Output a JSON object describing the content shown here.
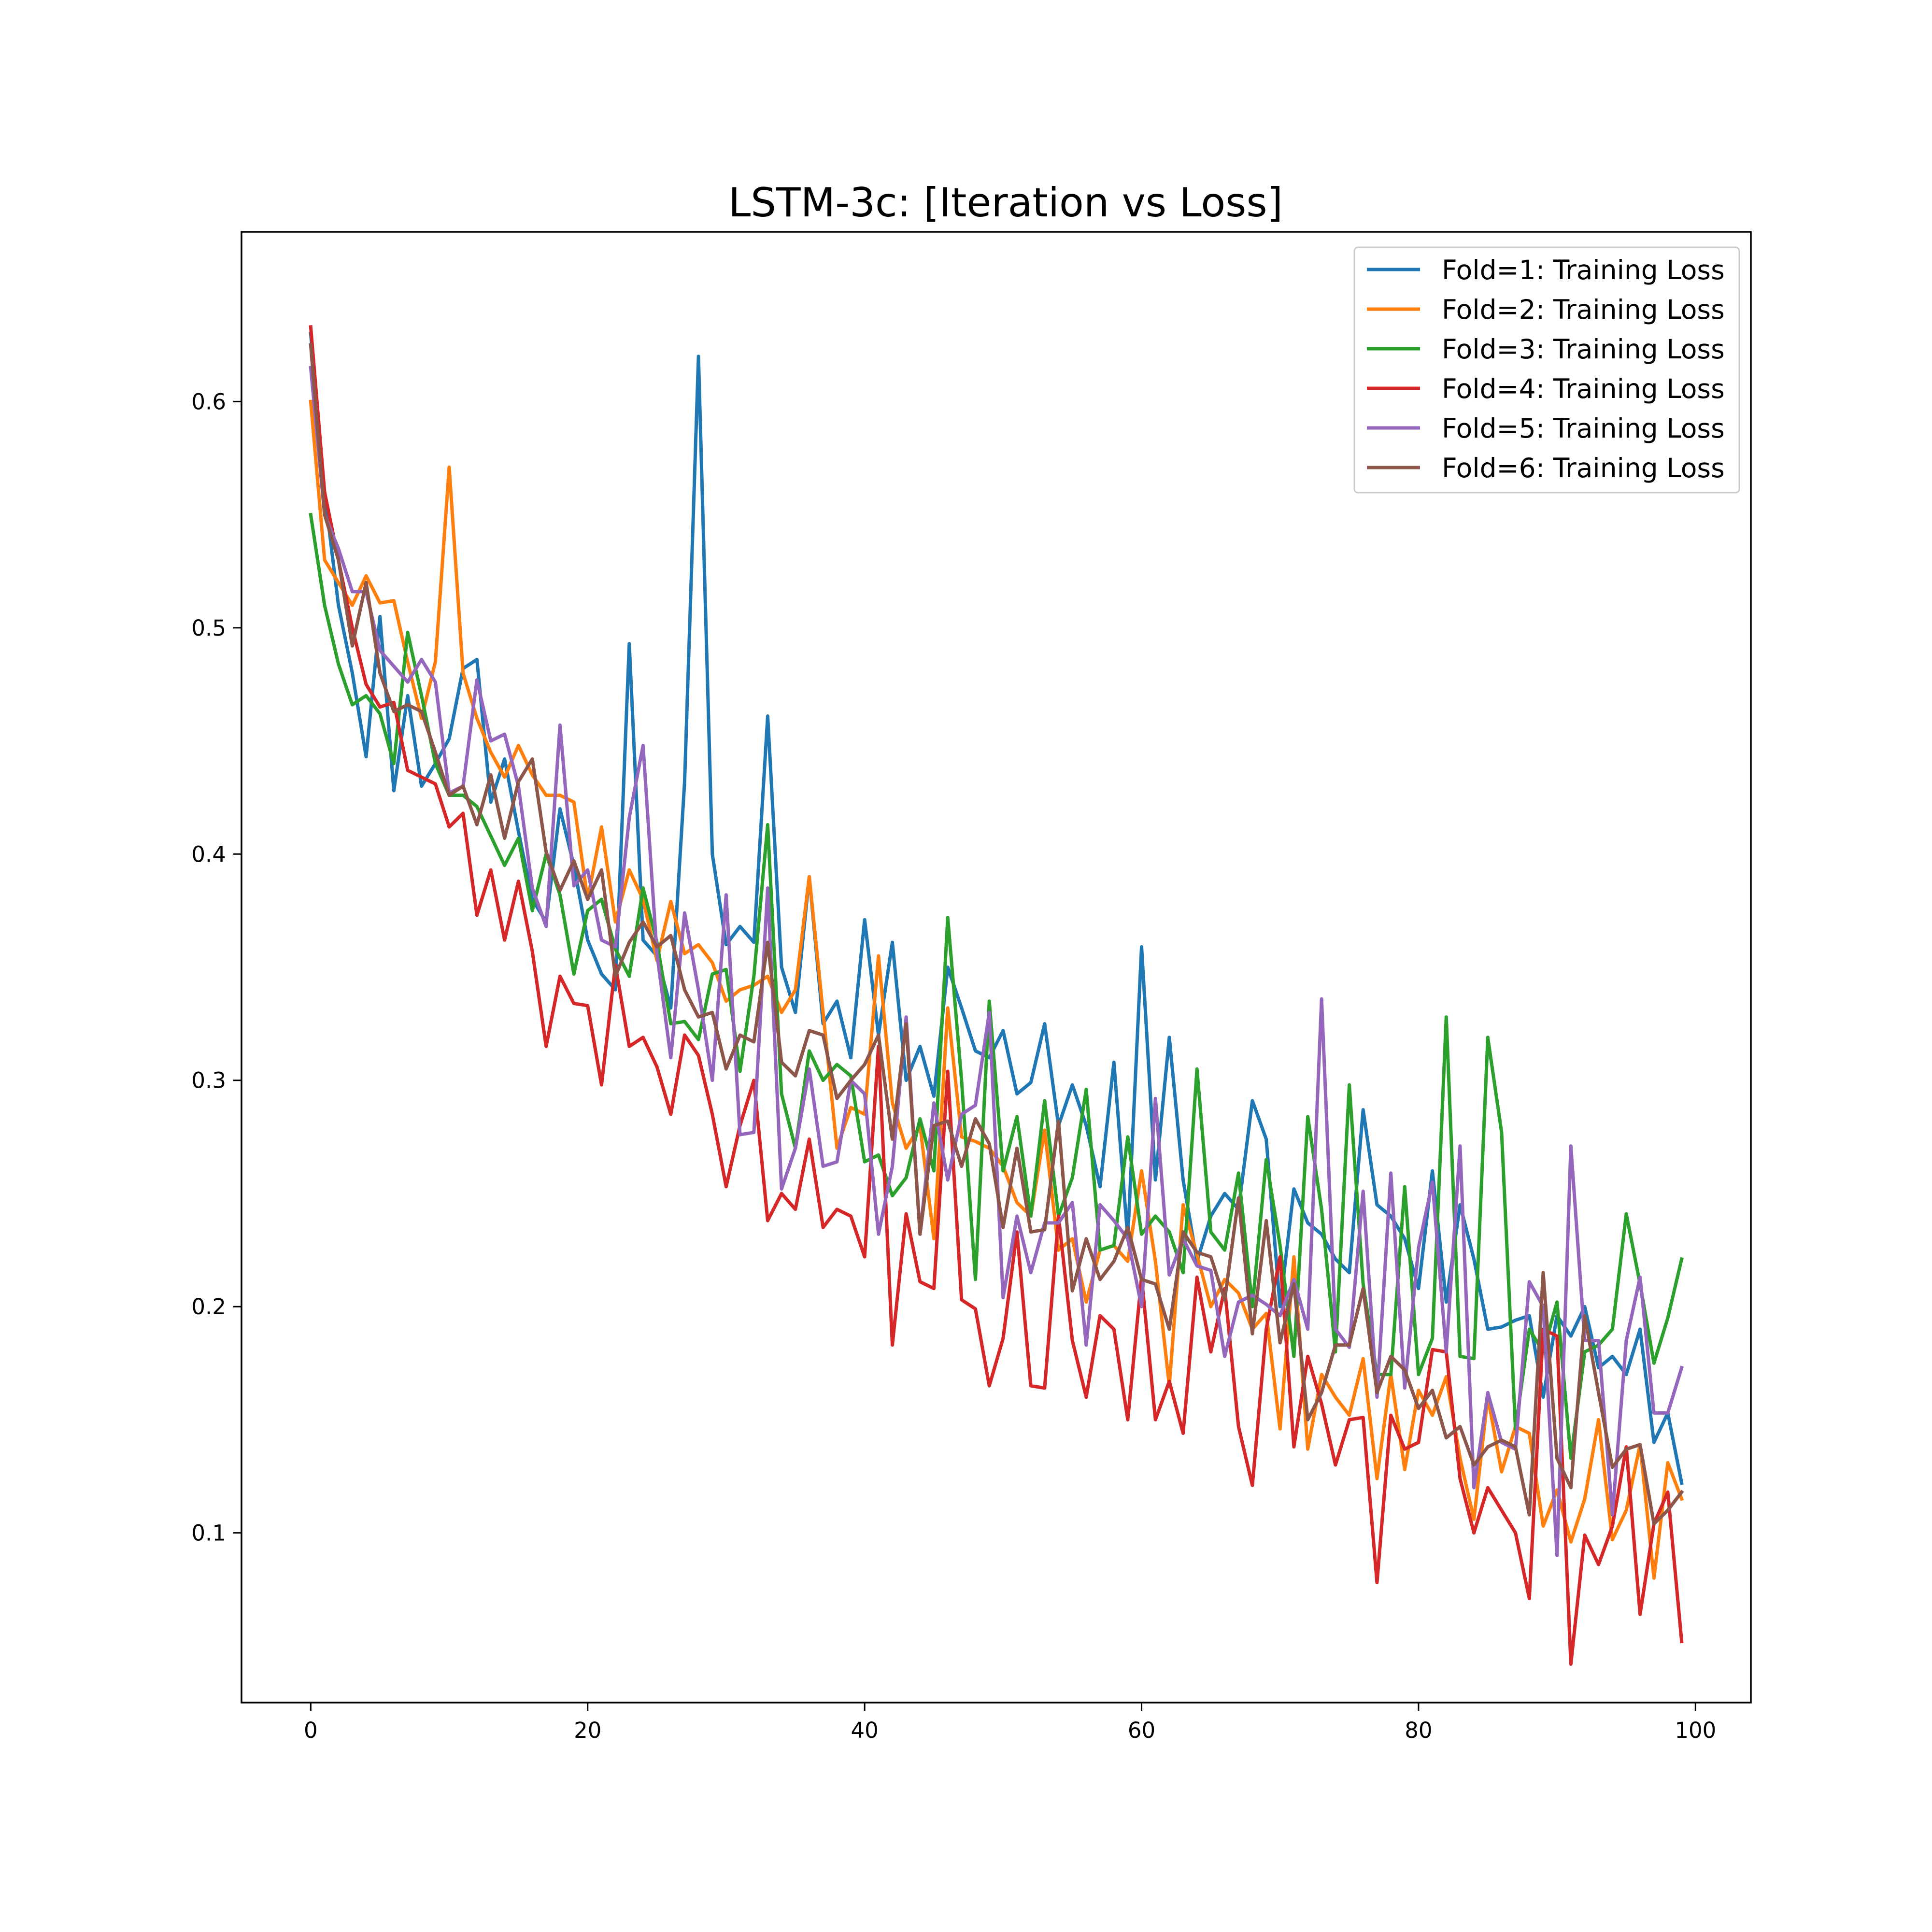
{
  "chart_data": {
    "type": "line",
    "title": "LSTM-3c: [Iteration vs Loss]",
    "xlabel": "",
    "ylabel": "",
    "xlim": [
      -5,
      104
    ],
    "ylim": [
      0.025,
      0.675
    ],
    "xticks": [
      0,
      20,
      40,
      60,
      80,
      100
    ],
    "yticks": [
      0.1,
      0.2,
      0.3,
      0.4,
      0.5,
      0.6
    ],
    "grid": false,
    "legend_position": "top-right",
    "series": [
      {
        "name": "Fold=1: Training Loss",
        "color": "#1f77b4",
        "values": [
          0.63,
          0.56,
          0.51,
          0.48,
          0.443,
          0.505,
          0.428,
          0.47,
          0.43,
          0.44,
          0.451,
          0.482,
          0.486,
          0.423,
          0.442,
          0.41,
          0.38,
          0.37,
          0.42,
          0.395,
          0.362,
          0.347,
          0.34,
          0.493,
          0.362,
          0.355,
          0.332,
          0.432,
          0.62,
          0.4,
          0.36,
          0.368,
          0.361,
          0.461,
          0.35,
          0.33,
          0.39,
          0.325,
          0.335,
          0.31,
          0.371,
          0.32,
          0.361,
          0.3,
          0.315,
          0.293,
          0.35,
          0.332,
          0.313,
          0.31,
          0.322,
          0.294,
          0.299,
          0.325,
          0.28,
          0.298,
          0.28,
          0.253,
          0.308,
          0.23,
          0.359,
          0.256,
          0.319,
          0.256,
          0.22,
          0.24,
          0.25,
          0.243,
          0.291,
          0.274,
          0.2,
          0.252,
          0.237,
          0.232,
          0.221,
          0.215,
          0.287,
          0.245,
          0.24,
          0.23,
          0.208,
          0.26,
          0.202,
          0.245,
          0.221,
          0.19,
          0.191,
          0.194,
          0.196,
          0.16,
          0.196,
          0.187,
          0.2,
          0.173,
          0.178,
          0.17,
          0.19,
          0.14,
          0.153,
          0.122
        ]
      },
      {
        "name": "Fold=2: Training Loss",
        "color": "#ff7f0e",
        "values": [
          0.6,
          0.53,
          0.52,
          0.51,
          0.523,
          0.511,
          0.512,
          0.485,
          0.46,
          0.485,
          0.571,
          0.48,
          0.46,
          0.445,
          0.434,
          0.448,
          0.435,
          0.426,
          0.426,
          0.423,
          0.38,
          0.412,
          0.37,
          0.393,
          0.38,
          0.353,
          0.379,
          0.356,
          0.36,
          0.352,
          0.335,
          0.34,
          0.342,
          0.346,
          0.33,
          0.34,
          0.39,
          0.33,
          0.27,
          0.288,
          0.285,
          0.355,
          0.29,
          0.27,
          0.28,
          0.23,
          0.332,
          0.275,
          0.273,
          0.27,
          0.262,
          0.246,
          0.24,
          0.278,
          0.225,
          0.23,
          0.202,
          0.225,
          0.227,
          0.22,
          0.26,
          0.22,
          0.165,
          0.245,
          0.223,
          0.2,
          0.212,
          0.206,
          0.19,
          0.197,
          0.146,
          0.222,
          0.137,
          0.17,
          0.16,
          0.152,
          0.177,
          0.124,
          0.17,
          0.128,
          0.163,
          0.152,
          0.169,
          0.133,
          0.106,
          0.16,
          0.127,
          0.147,
          0.144,
          0.103,
          0.119,
          0.096,
          0.115,
          0.15,
          0.097,
          0.11,
          0.139,
          0.08,
          0.131,
          0.115
        ]
      },
      {
        "name": "Fold=3: Training Loss",
        "color": "#2ca02c",
        "values": [
          0.55,
          0.51,
          0.484,
          0.466,
          0.47,
          0.462,
          0.44,
          0.498,
          0.47,
          0.44,
          0.426,
          0.426,
          0.421,
          0.408,
          0.395,
          0.407,
          0.375,
          0.4,
          0.382,
          0.347,
          0.375,
          0.38,
          0.358,
          0.346,
          0.385,
          0.361,
          0.325,
          0.326,
          0.318,
          0.347,
          0.349,
          0.304,
          0.346,
          0.413,
          0.294,
          0.27,
          0.313,
          0.3,
          0.307,
          0.302,
          0.264,
          0.267,
          0.249,
          0.257,
          0.283,
          0.26,
          0.372,
          0.3,
          0.212,
          0.335,
          0.26,
          0.284,
          0.24,
          0.291,
          0.24,
          0.257,
          0.296,
          0.225,
          0.227,
          0.275,
          0.232,
          0.24,
          0.233,
          0.215,
          0.305,
          0.233,
          0.225,
          0.259,
          0.2,
          0.265,
          0.227,
          0.178,
          0.284,
          0.243,
          0.18,
          0.298,
          0.21,
          0.17,
          0.17,
          0.253,
          0.17,
          0.186,
          0.328,
          0.178,
          0.177,
          0.319,
          0.277,
          0.146,
          0.19,
          0.18,
          0.202,
          0.133,
          0.18,
          0.183,
          0.19,
          0.241,
          0.21,
          0.175,
          0.195,
          0.221
        ]
      },
      {
        "name": "Fold=4: Training Loss",
        "color": "#d62728",
        "values": [
          0.633,
          0.56,
          0.53,
          0.5,
          0.475,
          0.465,
          0.467,
          0.437,
          0.434,
          0.431,
          0.412,
          0.418,
          0.373,
          0.393,
          0.362,
          0.388,
          0.357,
          0.315,
          0.346,
          0.334,
          0.333,
          0.298,
          0.351,
          0.315,
          0.319,
          0.306,
          0.285,
          0.32,
          0.311,
          0.285,
          0.253,
          0.28,
          0.3,
          0.238,
          0.25,
          0.243,
          0.274,
          0.235,
          0.243,
          0.24,
          0.222,
          0.315,
          0.183,
          0.241,
          0.211,
          0.208,
          0.304,
          0.203,
          0.199,
          0.165,
          0.186,
          0.233,
          0.165,
          0.164,
          0.24,
          0.185,
          0.16,
          0.196,
          0.19,
          0.15,
          0.213,
          0.15,
          0.167,
          0.144,
          0.213,
          0.18,
          0.208,
          0.147,
          0.121,
          0.19,
          0.222,
          0.138,
          0.178,
          0.157,
          0.13,
          0.15,
          0.151,
          0.078,
          0.152,
          0.137,
          0.14,
          0.181,
          0.18,
          0.124,
          0.1,
          0.12,
          0.11,
          0.1,
          0.071,
          0.19,
          0.187,
          0.042,
          0.099,
          0.086,
          0.103,
          0.138,
          0.064,
          0.104,
          0.118,
          0.052
        ]
      },
      {
        "name": "Fold=5: Training Loss",
        "color": "#9467bd",
        "values": [
          0.615,
          0.55,
          0.535,
          0.516,
          0.516,
          0.49,
          0.483,
          0.476,
          0.486,
          0.476,
          0.427,
          0.43,
          0.477,
          0.45,
          0.453,
          0.43,
          0.385,
          0.368,
          0.457,
          0.386,
          0.393,
          0.362,
          0.359,
          0.416,
          0.448,
          0.356,
          0.31,
          0.374,
          0.34,
          0.3,
          0.382,
          0.276,
          0.277,
          0.385,
          0.252,
          0.27,
          0.305,
          0.262,
          0.264,
          0.3,
          0.294,
          0.232,
          0.262,
          0.328,
          0.232,
          0.29,
          0.256,
          0.285,
          0.289,
          0.33,
          0.204,
          0.24,
          0.215,
          0.237,
          0.237,
          0.246,
          0.183,
          0.245,
          0.238,
          0.23,
          0.2,
          0.292,
          0.214,
          0.23,
          0.218,
          0.216,
          0.178,
          0.202,
          0.205,
          0.201,
          0.196,
          0.212,
          0.19,
          0.336,
          0.19,
          0.182,
          0.251,
          0.16,
          0.259,
          0.164,
          0.226,
          0.255,
          0.18,
          0.271,
          0.12,
          0.162,
          0.14,
          0.137,
          0.211,
          0.2,
          0.09,
          0.271,
          0.185,
          0.185,
          0.108,
          0.185,
          0.213,
          0.153,
          0.153,
          0.173
        ]
      },
      {
        "name": "Fold=6: Training Loss",
        "color": "#8c564b",
        "values": [
          0.625,
          0.55,
          0.53,
          0.492,
          0.52,
          0.48,
          0.463,
          0.466,
          0.463,
          0.445,
          0.426,
          0.43,
          0.413,
          0.435,
          0.407,
          0.432,
          0.442,
          0.401,
          0.384,
          0.397,
          0.38,
          0.393,
          0.346,
          0.361,
          0.37,
          0.359,
          0.364,
          0.34,
          0.328,
          0.33,
          0.305,
          0.32,
          0.317,
          0.361,
          0.308,
          0.302,
          0.322,
          0.32,
          0.292,
          0.3,
          0.307,
          0.32,
          0.274,
          0.325,
          0.232,
          0.28,
          0.282,
          0.262,
          0.283,
          0.272,
          0.235,
          0.27,
          0.233,
          0.234,
          0.282,
          0.207,
          0.23,
          0.212,
          0.22,
          0.235,
          0.212,
          0.21,
          0.19,
          0.233,
          0.224,
          0.222,
          0.203,
          0.248,
          0.188,
          0.238,
          0.184,
          0.21,
          0.15,
          0.162,
          0.183,
          0.183,
          0.208,
          0.162,
          0.178,
          0.172,
          0.155,
          0.163,
          0.142,
          0.147,
          0.13,
          0.138,
          0.141,
          0.138,
          0.108,
          0.215,
          0.133,
          0.12,
          0.196,
          0.162,
          0.129,
          0.137,
          0.139,
          0.104,
          0.11,
          0.118
        ]
      }
    ]
  }
}
